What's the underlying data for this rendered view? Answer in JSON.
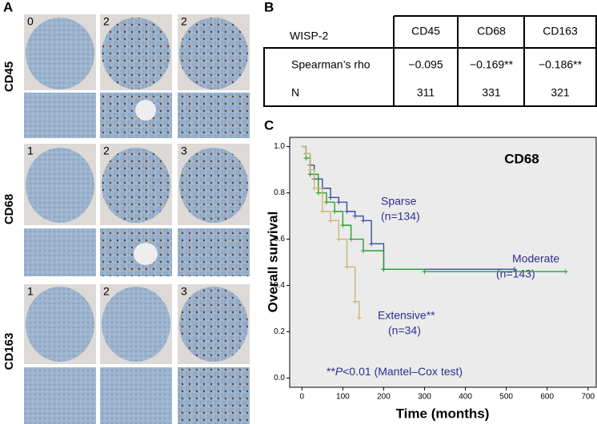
{
  "panel_a": {
    "letter": "A",
    "rows": [
      {
        "marker": "CD45",
        "scores": [
          "0",
          "2",
          "2"
        ]
      },
      {
        "marker": "CD68",
        "scores": [
          "1",
          "2",
          "3"
        ]
      },
      {
        "marker": "CD163",
        "scores": [
          "1",
          "2",
          "3"
        ]
      }
    ]
  },
  "panel_b": {
    "letter": "B",
    "table": {
      "header": [
        "WISP-2",
        "CD45",
        "CD68",
        "CD163"
      ],
      "rows": [
        [
          "Spearman’s rho",
          "−0.095",
          "−0.169**",
          "−0.186**"
        ],
        [
          "N",
          "311",
          "331",
          "321"
        ]
      ]
    }
  },
  "panel_c_letter": "C",
  "chart_data": {
    "type": "step",
    "title": "CD68",
    "x_label": "Time (months)",
    "y_label": "Overall survival",
    "xlim": [
      -30,
      720
    ],
    "ylim": [
      -0.04,
      1.04
    ],
    "xticks": [
      0,
      100,
      200,
      300,
      400,
      500,
      600,
      700
    ],
    "yticks": [
      {
        "value": 0,
        "label": "0.0"
      },
      {
        "value": 0.2,
        "label": "0.2"
      },
      {
        "value": 0.4,
        "label": "0.4"
      },
      {
        "value": 0.6,
        "label": "0.6"
      },
      {
        "value": 0.8,
        "label": "0.8"
      },
      {
        "value": 1,
        "label": "1.0"
      }
    ],
    "series": [
      {
        "name": "Sparse",
        "color": "#3a4aa8",
        "x": [
          0,
          10,
          20,
          30,
          50,
          70,
          90,
          110,
          130,
          150,
          170,
          200,
          520
        ],
        "values": [
          1,
          0.97,
          0.92,
          0.86,
          0.82,
          0.78,
          0.76,
          0.72,
          0.7,
          0.68,
          0.58,
          0.47,
          0.47
        ]
      },
      {
        "name": "Moderate",
        "color": "#2ca02c",
        "x": [
          0,
          10,
          20,
          40,
          60,
          80,
          100,
          120,
          150,
          200,
          300,
          645
        ],
        "values": [
          1,
          0.95,
          0.88,
          0.8,
          0.76,
          0.72,
          0.66,
          0.6,
          0.55,
          0.47,
          0.46,
          0.46
        ]
      },
      {
        "name": "Extensive",
        "color": "#c8b870",
        "x": [
          0,
          10,
          20,
          30,
          50,
          70,
          90,
          110,
          130,
          140
        ],
        "values": [
          1,
          0.97,
          0.9,
          0.82,
          0.72,
          0.68,
          0.6,
          0.48,
          0.33,
          0.26
        ]
      }
    ],
    "annotations": [
      [
        "Sparse",
        "(n=134)"
      ],
      [
        "Moderate",
        "(n=143)"
      ],
      [
        "Extensive**",
        "(n=34)"
      ]
    ],
    "footnote": [
      "**",
      "P",
      "<0.01 (Mantel–Cox test)"
    ]
  }
}
